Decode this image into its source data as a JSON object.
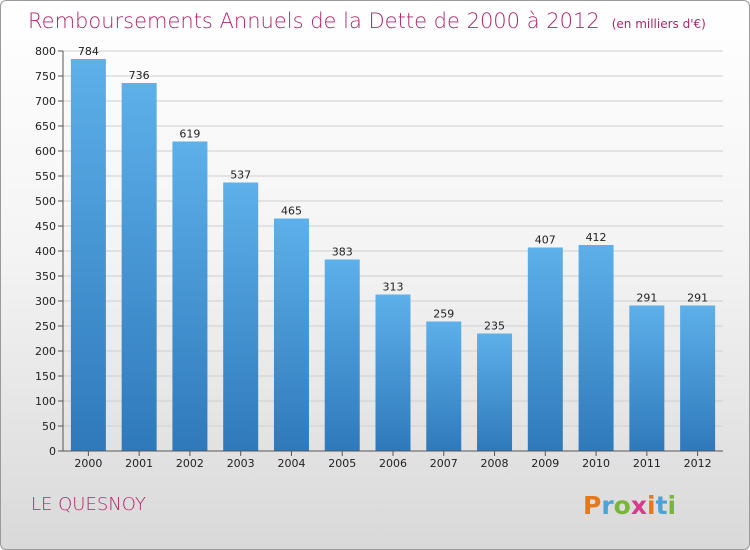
{
  "title": "Remboursements Annuels de la Dette de 2000 à 2012",
  "unit": "(en milliers d'€)",
  "location": "LE QUESNOY",
  "logo": {
    "text": "Proxiti",
    "colors": [
      "#e77817",
      "#4da3d8",
      "#79b536",
      "#d63c8c"
    ]
  },
  "colors": {
    "title": "#b0266a",
    "bar_top": "#5db0ea",
    "bar_bottom": "#2f79bb",
    "grid": "#cfcfcf"
  },
  "chart_data": {
    "type": "bar",
    "title": "Remboursements Annuels de la Dette de 2000 à 2012",
    "subtitle": "(en milliers d'€)",
    "categories": [
      "2000",
      "2001",
      "2002",
      "2003",
      "2004",
      "2005",
      "2006",
      "2007",
      "2008",
      "2009",
      "2010",
      "2011",
      "2012"
    ],
    "values": [
      784,
      736,
      619,
      537,
      465,
      383,
      313,
      259,
      235,
      407,
      412,
      291,
      291
    ],
    "ylim": [
      0,
      800
    ],
    "yticks": [
      0,
      50,
      100,
      150,
      200,
      250,
      300,
      350,
      400,
      450,
      500,
      550,
      600,
      650,
      700,
      750,
      800
    ],
    "grid": true,
    "xlabel": "",
    "ylabel": ""
  }
}
